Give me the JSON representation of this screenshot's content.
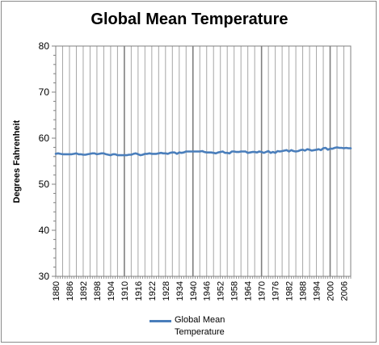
{
  "chart_data": {
    "type": "line",
    "title": "Global Mean Temperature",
    "xlabel": "",
    "ylabel": "Degrees Fahrenheit",
    "xlim": [
      1880,
      2009
    ],
    "ylim": [
      30,
      80
    ],
    "yticks": [
      30,
      40,
      50,
      60,
      70,
      80
    ],
    "xticks": [
      1880,
      1886,
      1892,
      1898,
      1904,
      1910,
      1916,
      1922,
      1928,
      1934,
      1940,
      1946,
      1952,
      1958,
      1964,
      1970,
      1976,
      1982,
      1988,
      1994,
      2000,
      2006
    ],
    "grid": "vertical",
    "legend_position": "bottom",
    "series": [
      {
        "name": "Global Mean Temperature",
        "color": "#4a7ebb",
        "x": [
          1880,
          1881,
          1882,
          1883,
          1884,
          1885,
          1886,
          1887,
          1888,
          1889,
          1890,
          1891,
          1892,
          1893,
          1894,
          1895,
          1896,
          1897,
          1898,
          1899,
          1900,
          1901,
          1902,
          1903,
          1904,
          1905,
          1906,
          1907,
          1908,
          1909,
          1910,
          1911,
          1912,
          1913,
          1914,
          1915,
          1916,
          1917,
          1918,
          1919,
          1920,
          1921,
          1922,
          1923,
          1924,
          1925,
          1926,
          1927,
          1928,
          1929,
          1930,
          1931,
          1932,
          1933,
          1934,
          1935,
          1936,
          1937,
          1938,
          1939,
          1940,
          1941,
          1942,
          1943,
          1944,
          1945,
          1946,
          1947,
          1948,
          1949,
          1950,
          1951,
          1952,
          1953,
          1954,
          1955,
          1956,
          1957,
          1958,
          1959,
          1960,
          1961,
          1962,
          1963,
          1964,
          1965,
          1966,
          1967,
          1968,
          1969,
          1970,
          1971,
          1972,
          1973,
          1974,
          1975,
          1976,
          1977,
          1978,
          1979,
          1980,
          1981,
          1982,
          1983,
          1984,
          1985,
          1986,
          1987,
          1988,
          1989,
          1990,
          1991,
          1992,
          1993,
          1994,
          1995,
          1996,
          1997,
          1998,
          1999,
          2000,
          2001,
          2002,
          2003,
          2004,
          2005,
          2006,
          2007,
          2008,
          2009
        ],
        "values": [
          56.6,
          56.7,
          56.6,
          56.5,
          56.5,
          56.5,
          56.5,
          56.5,
          56.6,
          56.7,
          56.5,
          56.5,
          56.4,
          56.4,
          56.5,
          56.6,
          56.7,
          56.7,
          56.5,
          56.6,
          56.7,
          56.7,
          56.5,
          56.4,
          56.3,
          56.5,
          56.5,
          56.3,
          56.3,
          56.3,
          56.3,
          56.3,
          56.4,
          56.4,
          56.6,
          56.7,
          56.5,
          56.3,
          56.4,
          56.6,
          56.6,
          56.7,
          56.6,
          56.6,
          56.6,
          56.7,
          56.8,
          56.7,
          56.7,
          56.6,
          56.8,
          56.9,
          56.9,
          56.6,
          56.9,
          56.8,
          56.9,
          57.1,
          57.1,
          57.1,
          57.1,
          57.1,
          57.1,
          57.1,
          57.2,
          57.0,
          56.9,
          56.9,
          56.9,
          56.8,
          56.7,
          56.9,
          57.0,
          57.1,
          56.8,
          56.8,
          56.7,
          57.1,
          57.1,
          57.0,
          57.0,
          57.1,
          57.1,
          57.1,
          56.8,
          56.9,
          57.0,
          57.0,
          56.9,
          57.1,
          57.0,
          56.8,
          57.0,
          57.2,
          56.8,
          57.0,
          56.8,
          57.2,
          57.1,
          57.2,
          57.3,
          57.4,
          57.1,
          57.4,
          57.2,
          57.1,
          57.2,
          57.4,
          57.5,
          57.3,
          57.6,
          57.5,
          57.3,
          57.4,
          57.5,
          57.6,
          57.4,
          57.8,
          57.9,
          57.5,
          57.7,
          57.7,
          57.9,
          58.0,
          57.9,
          57.9,
          57.8,
          57.9,
          57.8,
          57.8
        ]
      }
    ]
  },
  "legend": {
    "label": "Global Mean Temperature"
  }
}
